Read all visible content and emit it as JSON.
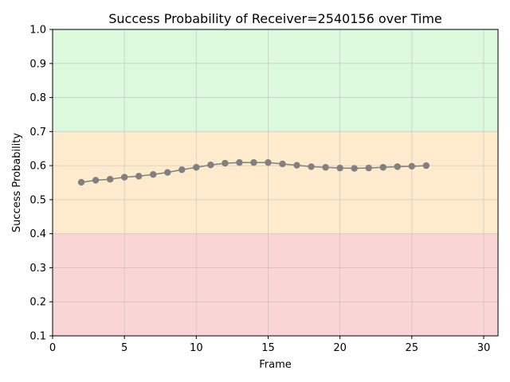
{
  "chart_data": {
    "type": "line",
    "title": "Success Probability of Receiver=2540156 over Time",
    "xlabel": "Frame",
    "ylabel": "Success Probability",
    "xlim": [
      0,
      31
    ],
    "ylim": [
      0.1,
      1.0
    ],
    "x_ticks": [
      0,
      5,
      10,
      15,
      20,
      25,
      30
    ],
    "y_ticks": [
      0.1,
      0.2,
      0.3,
      0.4,
      0.5,
      0.6,
      0.7,
      0.8,
      0.9,
      1.0
    ],
    "x_tick_labels": [
      "0",
      "5",
      "10",
      "15",
      "20",
      "25",
      "30"
    ],
    "y_tick_labels": [
      "0.1",
      "0.2",
      "0.3",
      "0.4",
      "0.5",
      "0.6",
      "0.7",
      "0.8",
      "0.9",
      "1.0"
    ],
    "grid": true,
    "bands": [
      {
        "from": 0.1,
        "to": 0.4,
        "color": "#f9d6d5"
      },
      {
        "from": 0.4,
        "to": 0.7,
        "color": "#feebcd"
      },
      {
        "from": 0.7,
        "to": 1.0,
        "color": "#dcf8dd"
      }
    ],
    "series": [
      {
        "color": "#808080",
        "x": [
          2,
          3,
          4,
          5,
          6,
          7,
          8,
          9,
          10,
          11,
          12,
          13,
          14,
          15,
          16,
          17,
          18,
          19,
          20,
          21,
          22,
          23,
          24,
          25,
          26
        ],
        "y": [
          0.551,
          0.557,
          0.56,
          0.566,
          0.569,
          0.574,
          0.58,
          0.588,
          0.595,
          0.602,
          0.607,
          0.609,
          0.609,
          0.609,
          0.605,
          0.601,
          0.597,
          0.595,
          0.593,
          0.592,
          0.593,
          0.595,
          0.597,
          0.598,
          0.6
        ]
      }
    ]
  }
}
